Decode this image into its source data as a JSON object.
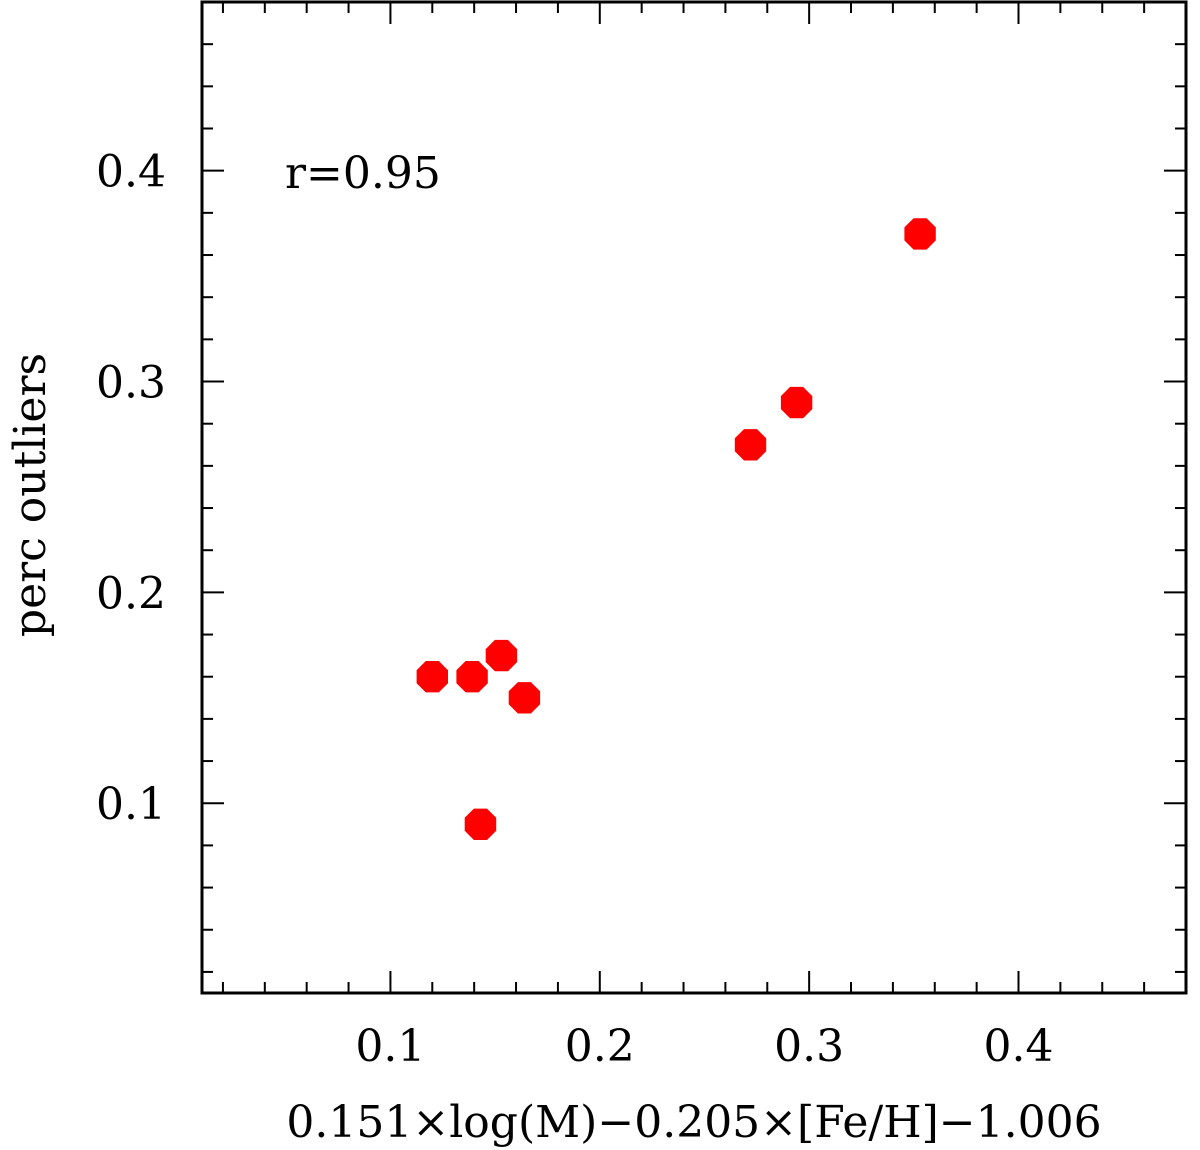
{
  "chart_data": {
    "type": "scatter",
    "title": "",
    "xlabel": "0.151×log(M)−0.205×[Fe/H]−1.006",
    "ylabel": "perc outliers",
    "xlim": [
      0.01,
      0.48
    ],
    "ylim": [
      0.01,
      0.48
    ],
    "x_ticks": [
      0.1,
      0.2,
      0.3,
      0.4
    ],
    "x_tick_labels": [
      "0.1",
      "0.2",
      "0.3",
      "0.4"
    ],
    "y_ticks": [
      0.1,
      0.2,
      0.3,
      0.4
    ],
    "y_tick_labels": [
      "0.1",
      "0.2",
      "0.3",
      "0.4"
    ],
    "x_minor_step": 0.02,
    "y_minor_step": 0.02,
    "grid": false,
    "legend": "none",
    "annotation": "r=0.95",
    "series": [
      {
        "color": "#ff0000",
        "marker": "filled-octagon",
        "points": [
          {
            "x": 0.12,
            "y": 0.16
          },
          {
            "x": 0.139,
            "y": 0.16
          },
          {
            "x": 0.153,
            "y": 0.17
          },
          {
            "x": 0.164,
            "y": 0.15
          },
          {
            "x": 0.143,
            "y": 0.09
          },
          {
            "x": 0.272,
            "y": 0.27
          },
          {
            "x": 0.294,
            "y": 0.29
          },
          {
            "x": 0.353,
            "y": 0.37
          }
        ]
      }
    ]
  }
}
